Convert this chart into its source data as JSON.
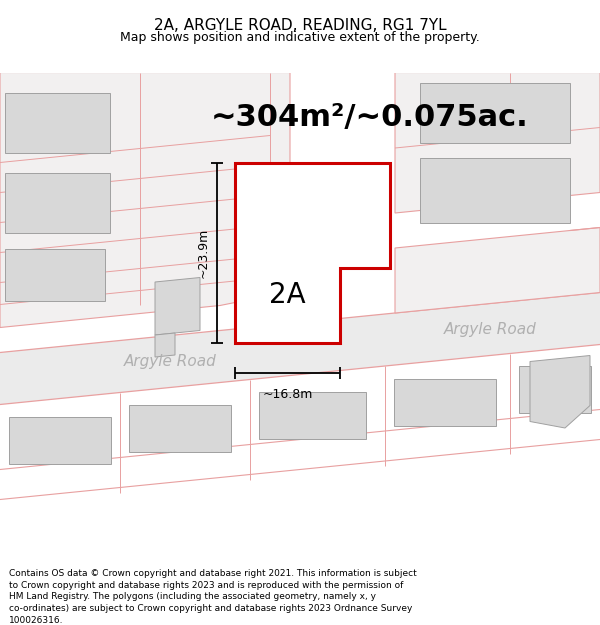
{
  "title_line1": "2A, ARGYLE ROAD, READING, RG1 7YL",
  "title_line2": "Map shows position and indicative extent of the property.",
  "area_text": "~304m²/~0.075ac.",
  "label_2a": "2A",
  "dim_height": "~23.9m",
  "dim_width": "~16.8m",
  "road_label1": "Argyle Road",
  "road_label2": "Argyle Road",
  "footer_text": "Contains OS data © Crown copyright and database right 2021. This information is subject to Crown copyright and database rights 2023 and is reproduced with the permission of HM Land Registry. The polygons (including the associated geometry, namely x, y co-ordinates) are subject to Crown copyright and database rights 2023 Ordnance Survey 100026316.",
  "map_bg": "#f2f0f0",
  "building_fill": "#d8d8d8",
  "building_edge": "#a0a0a0",
  "road_line_color": "#e8a0a0",
  "road_edge_color": "#c0c0c0",
  "highlight_fill": "#ffffff",
  "highlight_edge": "#cc0000",
  "dim_line_color": "#000000",
  "text_color": "#000000",
  "road_text_color": "#b0b0b0",
  "title_fontsize": 11,
  "subtitle_fontsize": 9,
  "area_fontsize": 22,
  "label_fontsize": 20,
  "dim_fontsize": 9,
  "road_fontsize": 11,
  "footer_fontsize": 6.5
}
